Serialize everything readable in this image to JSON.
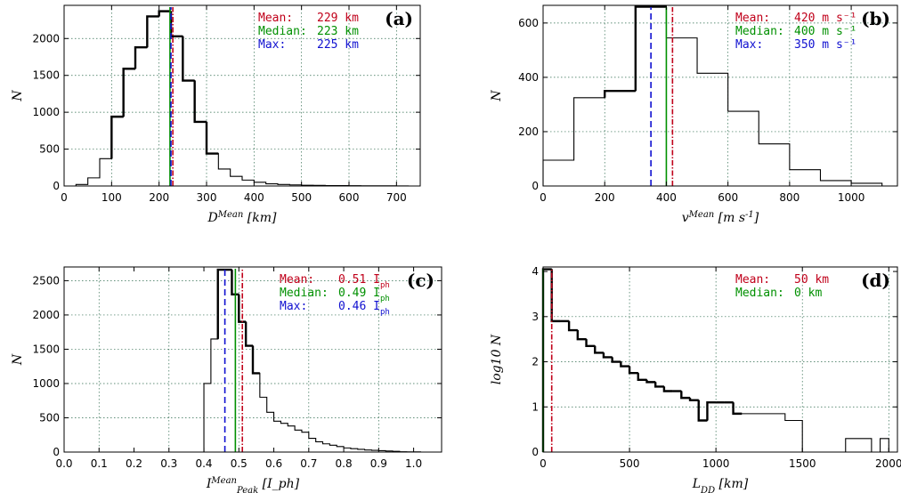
{
  "colors": {
    "mean": "#c0001a",
    "median": "#009000",
    "max": "#1010d0",
    "grid": "#2e6b4e"
  },
  "chart_data": [
    {
      "id": "a",
      "type": "bar",
      "panel_label": "(a)",
      "xlabel": "D^{Mean} [km]",
      "ylabel": "N",
      "xlim": [
        0,
        750
      ],
      "ylim": [
        0,
        2450
      ],
      "xticks": [
        0,
        100,
        200,
        300,
        400,
        500,
        600,
        700
      ],
      "yticks": [
        0,
        500,
        1000,
        1500,
        2000
      ],
      "xgrid": [
        0,
        100,
        200,
        300,
        400,
        500,
        600,
        700
      ],
      "ygrid": [
        500,
        1000,
        1500,
        2000
      ],
      "bin_edges": [
        0,
        25,
        50,
        75,
        100,
        125,
        150,
        175,
        200,
        225,
        250,
        275,
        300,
        325,
        350,
        375,
        400,
        425,
        450,
        475,
        500,
        525,
        550,
        575,
        600,
        625,
        650,
        675,
        700,
        725,
        750
      ],
      "counts": [
        0,
        20,
        110,
        370,
        940,
        1590,
        1880,
        2300,
        2370,
        2030,
        1430,
        870,
        440,
        230,
        130,
        80,
        50,
        30,
        20,
        15,
        10,
        8,
        6,
        5,
        4,
        3,
        2,
        2,
        1,
        0
      ],
      "bold_range": [
        100,
        325
      ],
      "stats": [
        {
          "name": "Mean:",
          "value": 229,
          "text": "229 km",
          "role": "mean",
          "style": "dashdot"
        },
        {
          "name": "Median:",
          "value": 223,
          "text": "223 km",
          "role": "median",
          "style": "solid"
        },
        {
          "name": "Max:",
          "value": 225,
          "text": "225 km",
          "role": "max",
          "style": "dashed"
        }
      ]
    },
    {
      "id": "b",
      "type": "bar",
      "panel_label": "(b)",
      "xlabel": "v^{Mean} [m s^{-1}]",
      "ylabel": "N",
      "xlim": [
        0,
        1150
      ],
      "ylim": [
        0,
        665
      ],
      "xticks": [
        0,
        200,
        400,
        600,
        800,
        1000
      ],
      "yticks": [
        0,
        200,
        400,
        600
      ],
      "xgrid": [
        0,
        200,
        400,
        600,
        800,
        1000
      ],
      "ygrid": [
        200,
        400,
        600
      ],
      "bin_edges": [
        0,
        50,
        100,
        200,
        300,
        400,
        500,
        600,
        700,
        800,
        900,
        1000,
        1100,
        1150
      ],
      "counts": [
        95,
        95,
        325,
        350,
        660,
        545,
        415,
        275,
        155,
        60,
        20,
        10,
        0
      ],
      "bold_range": [
        200,
        400
      ],
      "stats": [
        {
          "name": "Mean:",
          "value": 420,
          "text": "420 m s⁻¹",
          "role": "mean",
          "style": "dashdot"
        },
        {
          "name": "Median:",
          "value": 400,
          "text": "400 m s⁻¹",
          "role": "median",
          "style": "solid"
        },
        {
          "name": "Max:",
          "value": 350,
          "text": "350 m s⁻¹",
          "role": "max",
          "style": "dashed"
        }
      ]
    },
    {
      "id": "c",
      "type": "bar",
      "panel_label": "(c)",
      "xlabel": "I^{Mean}_{Peak} [I_ph]",
      "ylabel": "N",
      "xlim": [
        0,
        1.08
      ],
      "ylim": [
        0,
        2700
      ],
      "xticks": [
        0.0,
        0.1,
        0.2,
        0.3,
        0.4,
        0.5,
        0.6,
        0.7,
        0.8,
        0.9,
        1.0
      ],
      "xticklabels": [
        "0.0",
        "0.1",
        "0.2",
        "0.3",
        "0.4",
        "0.5",
        "0.6",
        "0.7",
        "0.8",
        "0.9",
        "1.0"
      ],
      "yticks": [
        0,
        500,
        1000,
        1500,
        2000,
        2500
      ],
      "xgrid": [
        0.1,
        0.3,
        0.5,
        0.7,
        0.9
      ],
      "ygrid": [
        500,
        1000,
        1500,
        2000,
        2500
      ],
      "bin_edges": [
        0.0,
        0.4,
        0.42,
        0.44,
        0.46,
        0.48,
        0.5,
        0.52,
        0.54,
        0.56,
        0.58,
        0.6,
        0.62,
        0.64,
        0.66,
        0.68,
        0.7,
        0.72,
        0.74,
        0.76,
        0.78,
        0.8,
        0.82,
        0.84,
        0.86,
        0.88,
        0.9,
        0.92,
        0.94,
        0.96,
        0.98,
        1.0,
        1.02,
        1.08
      ],
      "counts": [
        0,
        1000,
        1650,
        2660,
        2660,
        2300,
        1900,
        1550,
        1150,
        800,
        580,
        450,
        420,
        380,
        320,
        290,
        200,
        150,
        120,
        100,
        80,
        60,
        50,
        40,
        30,
        25,
        20,
        15,
        10,
        5,
        3,
        2,
        0
      ],
      "bold_range": [
        0.44,
        0.56
      ],
      "stats": [
        {
          "name": "Mean:",
          "value": 0.51,
          "text": "0.51 I",
          "sub": "ph",
          "role": "mean",
          "style": "dashdot"
        },
        {
          "name": "Median:",
          "value": 0.49,
          "text": "0.49 I",
          "sub": "ph",
          "role": "median",
          "style": "solid"
        },
        {
          "name": "Max:",
          "value": 0.46,
          "text": "0.46 I",
          "sub": "ph",
          "role": "max",
          "style": "dashed"
        }
      ]
    },
    {
      "id": "d",
      "type": "bar",
      "panel_label": "(d)",
      "xlabel": "L_{DD} [km]",
      "ylabel": "log10 N",
      "xlim": [
        0,
        2050
      ],
      "ylim": [
        0,
        4.1
      ],
      "xticks": [
        0,
        500,
        1000,
        1500,
        2000
      ],
      "yticks": [
        0,
        1,
        2,
        3,
        4
      ],
      "xgrid": [
        500,
        1000,
        1500,
        2000
      ],
      "ygrid": [
        1,
        2,
        3
      ],
      "bin_edges": [
        0,
        50,
        100,
        150,
        200,
        250,
        300,
        350,
        400,
        450,
        500,
        550,
        600,
        650,
        700,
        750,
        800,
        850,
        900,
        950,
        1000,
        1050,
        1100,
        1150,
        1200,
        1250,
        1300,
        1350,
        1400,
        1450,
        1500,
        1550,
        1600,
        1650,
        1700,
        1750,
        1800,
        1850,
        1900,
        1950,
        2000,
        2050
      ],
      "counts": [
        4.05,
        2.9,
        2.9,
        2.7,
        2.5,
        2.35,
        2.2,
        2.1,
        2.0,
        1.9,
        1.75,
        1.6,
        1.55,
        1.45,
        1.35,
        1.35,
        1.2,
        1.15,
        0.7,
        1.1,
        1.1,
        1.1,
        0.85,
        0.85,
        0.85,
        0.85,
        0.85,
        0.85,
        0.7,
        0.7,
        0.0,
        0.0,
        0.0,
        0.0,
        0.0,
        0.3,
        0.3,
        0.3,
        0.0,
        0.3,
        0.0
      ],
      "bold_range": [
        0,
        1150
      ],
      "stats": [
        {
          "name": "Mean:",
          "value": 50,
          "text": "50 km",
          "role": "mean",
          "style": "dashdot"
        },
        {
          "name": "Median:",
          "value": 0,
          "text": "0 km",
          "role": "median",
          "style": "solid"
        }
      ]
    }
  ]
}
